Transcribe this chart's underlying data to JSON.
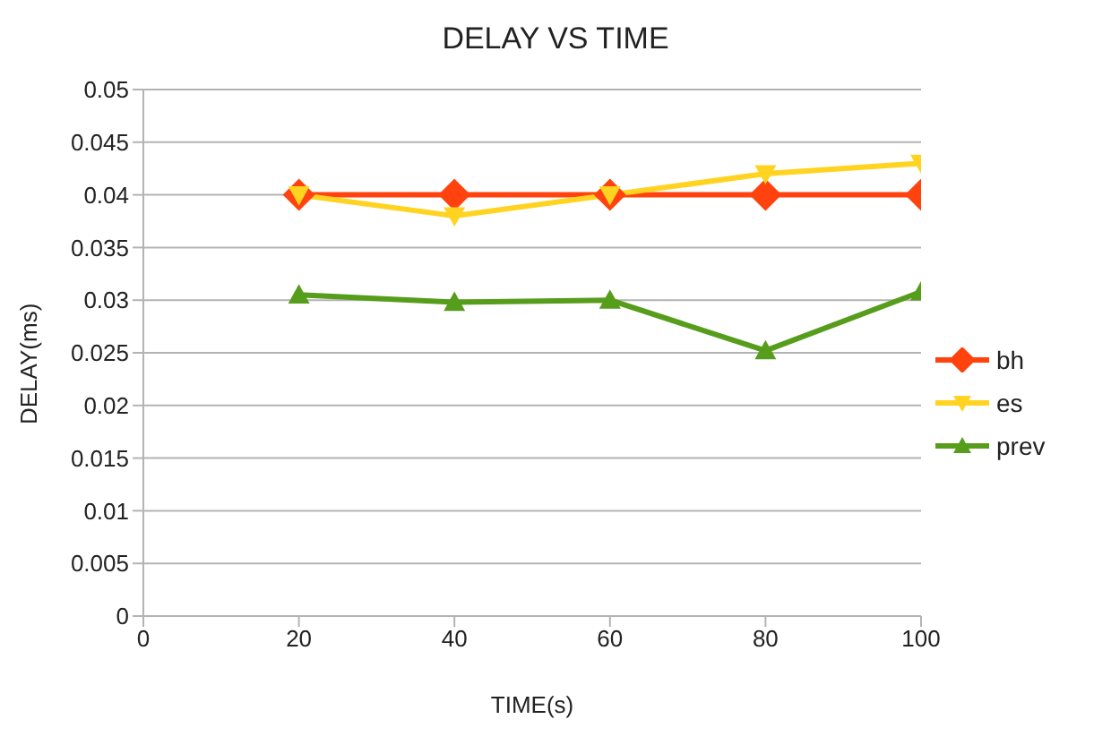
{
  "chart_data": {
    "type": "line",
    "title": "DELAY VS TIME",
    "xlabel": "TIME(s)",
    "ylabel": "DELAY(ms)",
    "x": [
      20,
      40,
      60,
      80,
      100
    ],
    "series": [
      {
        "name": "bh",
        "color": "#ff420e",
        "marker": "diamond",
        "values": [
          0.04,
          0.04,
          0.04,
          0.04,
          0.04
        ]
      },
      {
        "name": "es",
        "color": "#ffd320",
        "marker": "triangle-down",
        "values": [
          0.04,
          0.038,
          0.04,
          0.042,
          0.043
        ]
      },
      {
        "name": "prev",
        "color": "#579d1c",
        "marker": "triangle",
        "values": [
          0.0305,
          0.0298,
          0.03,
          0.0252,
          0.0308
        ]
      }
    ],
    "xlim": [
      0,
      100
    ],
    "xticks": [
      0,
      20,
      40,
      60,
      80,
      100
    ],
    "ylim": [
      0,
      0.05
    ],
    "yticks": [
      0,
      0.005,
      0.01,
      0.015,
      0.02,
      0.025,
      0.03,
      0.035,
      0.04,
      0.045,
      0.05
    ],
    "grid": "y",
    "legend": "right",
    "line_style": "solid"
  }
}
